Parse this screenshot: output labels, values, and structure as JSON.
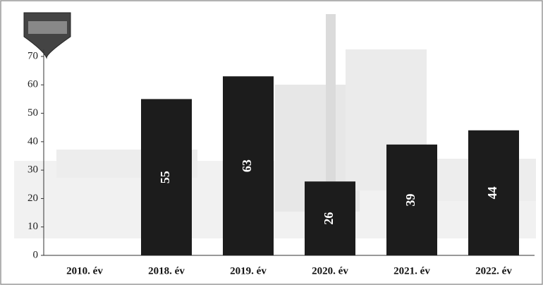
{
  "chart_data": {
    "type": "bar",
    "categories": [
      "2010. év",
      "2018. év",
      "2019. év",
      "2020. év",
      "2021. év",
      "2022. év"
    ],
    "values": [
      null,
      55,
      63,
      26,
      39,
      44
    ],
    "color": "#1c1c1c",
    "ylim": [
      0,
      70
    ],
    "yticks": [
      0,
      10,
      20,
      30,
      40,
      50,
      60,
      70
    ]
  }
}
